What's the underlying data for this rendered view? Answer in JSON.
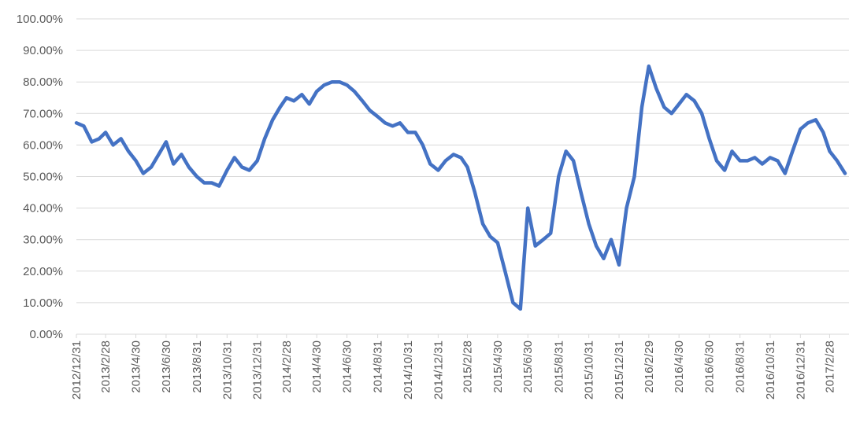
{
  "chart_data": {
    "type": "line",
    "title": "",
    "xlabel": "",
    "ylabel": "",
    "ylim": [
      0,
      100
    ],
    "grid": true,
    "legend": "none",
    "line_color": "#4472C4",
    "gridline_color": "#D9D9D9",
    "y_ticks": [
      "0.00%",
      "10.00%",
      "20.00%",
      "30.00%",
      "40.00%",
      "50.00%",
      "60.00%",
      "70.00%",
      "80.00%",
      "90.00%",
      "100.00%"
    ],
    "x_ticks": [
      "2012/12/31",
      "2013/2/28",
      "2013/4/30",
      "2013/6/30",
      "2013/8/31",
      "2013/10/31",
      "2013/12/31",
      "2014/2/28",
      "2014/4/30",
      "2014/6/30",
      "2014/8/31",
      "2014/10/31",
      "2014/12/31",
      "2015/2/28",
      "2015/4/30",
      "2015/6/30",
      "2015/8/31",
      "2015/10/31",
      "2015/12/31",
      "2016/2/29",
      "2016/4/30",
      "2016/6/30",
      "2016/8/31",
      "2016/10/31",
      "2016/12/31",
      "2017/2/28"
    ],
    "series": [
      {
        "x": [
          "2012/12/31",
          "2013/1/15",
          "2013/1/31",
          "2013/2/15",
          "2013/2/28",
          "2013/3/15",
          "2013/3/31",
          "2013/4/15",
          "2013/4/30",
          "2013/5/15",
          "2013/5/31",
          "2013/6/15",
          "2013/6/30",
          "2013/7/15",
          "2013/7/31",
          "2013/8/15",
          "2013/8/31",
          "2013/9/15",
          "2013/9/30",
          "2013/10/15",
          "2013/10/31",
          "2013/11/15",
          "2013/11/30",
          "2013/12/15",
          "2013/12/31",
          "2014/1/15",
          "2014/1/31",
          "2014/2/15",
          "2014/2/28",
          "2014/3/15",
          "2014/3/31",
          "2014/4/15",
          "2014/4/30",
          "2014/5/15",
          "2014/5/31",
          "2014/6/15",
          "2014/6/30",
          "2014/7/15",
          "2014/7/31",
          "2014/8/15",
          "2014/8/31",
          "2014/9/15",
          "2014/9/30",
          "2014/10/15",
          "2014/10/31",
          "2014/11/15",
          "2014/11/30",
          "2014/12/15",
          "2014/12/31",
          "2015/1/15",
          "2015/1/31",
          "2015/2/15",
          "2015/2/28",
          "2015/3/15",
          "2015/3/31",
          "2015/4/15",
          "2015/4/30",
          "2015/5/15",
          "2015/5/31",
          "2015/6/15",
          "2015/6/30",
          "2015/7/15",
          "2015/7/31",
          "2015/8/15",
          "2015/8/31",
          "2015/9/15",
          "2015/9/30",
          "2015/10/15",
          "2015/10/31",
          "2015/11/15",
          "2015/11/30",
          "2015/12/15",
          "2015/12/31",
          "2016/1/15",
          "2016/1/31",
          "2016/2/15",
          "2016/2/29",
          "2016/3/15",
          "2016/3/31",
          "2016/4/15",
          "2016/4/30",
          "2016/5/15",
          "2016/5/31",
          "2016/6/15",
          "2016/6/30",
          "2016/7/15",
          "2016/7/31",
          "2016/8/15",
          "2016/8/31",
          "2016/9/15",
          "2016/9/30",
          "2016/10/15",
          "2016/10/31",
          "2016/11/15",
          "2016/11/30",
          "2016/12/15",
          "2016/12/31",
          "2017/1/15",
          "2017/1/31",
          "2017/2/15",
          "2017/2/28",
          "2017/3/15",
          "2017/3/31"
        ],
        "values": [
          67,
          66,
          61,
          62,
          64,
          60,
          62,
          58,
          55,
          51,
          53,
          57,
          61,
          54,
          57,
          53,
          50,
          48,
          48,
          47,
          52,
          56,
          53,
          52,
          55,
          62,
          68,
          72,
          75,
          74,
          76,
          73,
          77,
          79,
          80,
          80,
          79,
          77,
          74,
          71,
          69,
          67,
          66,
          67,
          64,
          64,
          60,
          54,
          52,
          55,
          57,
          56,
          53,
          45,
          35,
          31,
          29,
          20,
          10,
          8,
          40,
          28,
          30,
          32,
          50,
          58,
          55,
          45,
          35,
          28,
          24,
          30,
          22,
          40,
          50,
          72,
          85,
          78,
          72,
          70,
          73,
          76,
          74,
          70,
          62,
          55,
          52,
          58,
          55,
          55,
          56,
          54,
          56,
          55,
          51,
          58,
          65,
          67,
          68,
          64,
          58,
          55,
          51
        ]
      }
    ]
  }
}
